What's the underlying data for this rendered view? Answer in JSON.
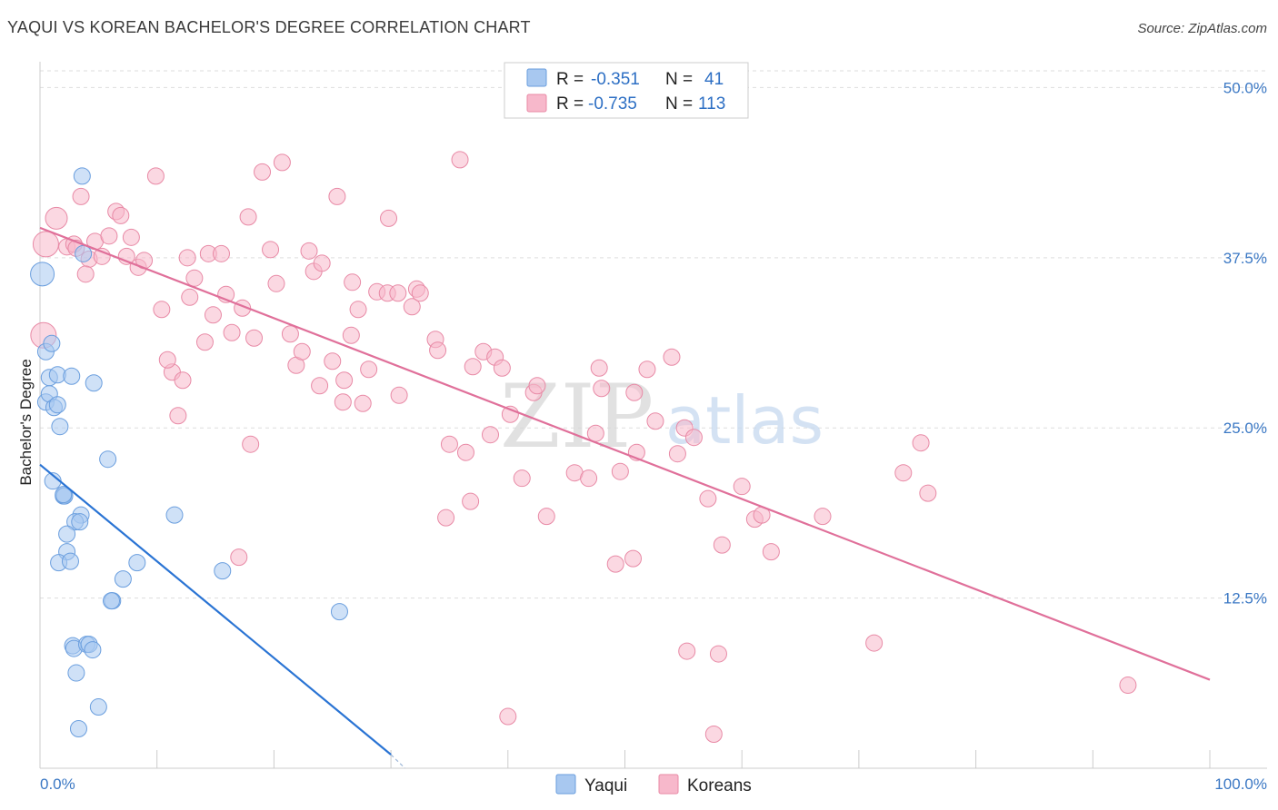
{
  "title": "YAQUI VS KOREAN BACHELOR'S DEGREE CORRELATION CHART",
  "source": "Source: ZipAtlas.com",
  "watermark": {
    "zip": "ZIP",
    "atlas": "atlas"
  },
  "colors": {
    "yaqui_fill": "#a8c8f0",
    "yaqui_stroke": "#6a9ede",
    "yaqui_line": "#2a74d4",
    "koreans_fill": "#f7b8cb",
    "koreans_stroke": "#e88aa6",
    "koreans_line": "#e0709a",
    "tick_text": "#3b78c4",
    "grid": "#dddddd"
  },
  "chart_data": {
    "type": "scatter",
    "title": "YAQUI VS KOREAN BACHELOR'S DEGREE CORRELATION CHART",
    "xlabel": "",
    "ylabel": "Bachelor's Degree",
    "xlim": [
      0,
      100
    ],
    "ylim": [
      0,
      50
    ],
    "x_tick_labels": [
      "0.0%",
      "100.0%"
    ],
    "y_ticks": [
      12.5,
      25.0,
      37.5,
      50.0
    ],
    "y_tick_labels": [
      "12.5%",
      "25.0%",
      "37.5%",
      "50.0%"
    ],
    "legend": [
      {
        "name": "Yaqui",
        "r_label": "R =",
        "r_value": "-0.351",
        "n_label": "N =",
        "n_value": "41"
      },
      {
        "name": "Koreans",
        "r_label": "R =",
        "r_value": "-0.735",
        "n_label": "N =",
        "n_value": "113"
      }
    ],
    "series": [
      {
        "name": "Yaqui",
        "trend": {
          "x": [
            0,
            30
          ],
          "y": [
            22.3,
            1.0
          ],
          "dashed_to": [
            31.2,
            0
          ]
        },
        "points": [
          [
            0.2,
            36.3,
            13
          ],
          [
            0.5,
            30.6,
            9
          ],
          [
            0.5,
            26.9,
            9
          ],
          [
            0.8,
            28.7,
            9
          ],
          [
            0.8,
            27.5,
            9
          ],
          [
            1.0,
            31.2,
            9
          ],
          [
            1.2,
            26.5,
            9
          ],
          [
            1.5,
            28.9,
            9
          ],
          [
            1.5,
            26.7,
            9
          ],
          [
            1.7,
            25.1,
            9
          ],
          [
            2.7,
            28.8,
            9
          ],
          [
            3.7,
            37.8,
            9
          ],
          [
            3.6,
            43.5,
            9
          ],
          [
            4.6,
            28.3,
            9
          ],
          [
            5.8,
            22.7,
            9
          ],
          [
            1.1,
            21.1,
            9
          ],
          [
            2.0,
            20.0,
            9
          ],
          [
            2.1,
            20.0,
            9
          ],
          [
            3.5,
            18.6,
            9
          ],
          [
            3.0,
            18.1,
            9
          ],
          [
            3.4,
            18.1,
            9
          ],
          [
            2.3,
            17.2,
            9
          ],
          [
            2.3,
            15.9,
            9
          ],
          [
            1.6,
            15.1,
            9
          ],
          [
            2.6,
            15.2,
            9
          ],
          [
            8.3,
            15.1,
            9
          ],
          [
            11.5,
            18.6,
            9
          ],
          [
            7.1,
            13.9,
            9
          ],
          [
            6.2,
            12.3,
            9
          ],
          [
            6.1,
            12.3,
            9
          ],
          [
            15.6,
            14.5,
            9
          ],
          [
            25.6,
            11.5,
            9
          ],
          [
            2.8,
            9.0,
            9
          ],
          [
            2.9,
            8.8,
            9
          ],
          [
            4.0,
            9.1,
            9
          ],
          [
            4.2,
            9.1,
            9
          ],
          [
            4.5,
            8.7,
            9
          ],
          [
            3.1,
            7.0,
            9
          ],
          [
            5.0,
            4.5,
            9
          ],
          [
            3.3,
            2.9,
            9
          ],
          [
            2.0,
            20.1,
            9
          ]
        ]
      },
      {
        "name": "Koreans",
        "trend": {
          "x": [
            0,
            100
          ],
          "y": [
            39.7,
            6.5
          ]
        },
        "points": [
          [
            1.4,
            40.4,
            12
          ],
          [
            0.5,
            38.5,
            14
          ],
          [
            0.3,
            31.8,
            14
          ],
          [
            2.3,
            38.3,
            9
          ],
          [
            2.9,
            38.5,
            9
          ],
          [
            3.1,
            38.2,
            9
          ],
          [
            3.5,
            42.0,
            9
          ],
          [
            4.2,
            37.4,
            9
          ],
          [
            3.9,
            36.3,
            9
          ],
          [
            4.7,
            38.7,
            9
          ],
          [
            5.3,
            37.6,
            9
          ],
          [
            5.9,
            39.1,
            9
          ],
          [
            6.5,
            40.9,
            9
          ],
          [
            6.9,
            40.6,
            9
          ],
          [
            7.8,
            39.0,
            9
          ],
          [
            7.4,
            37.6,
            9
          ],
          [
            8.4,
            36.8,
            9
          ],
          [
            8.9,
            37.3,
            9
          ],
          [
            9.9,
            43.5,
            9
          ],
          [
            10.4,
            33.7,
            9
          ],
          [
            11.3,
            29.1,
            9
          ],
          [
            10.9,
            30.0,
            9
          ],
          [
            11.8,
            25.9,
            9
          ],
          [
            12.2,
            28.5,
            9
          ],
          [
            12.6,
            37.5,
            9
          ],
          [
            12.8,
            34.6,
            9
          ],
          [
            13.2,
            36.0,
            9
          ],
          [
            14.1,
            31.3,
            9
          ],
          [
            14.4,
            37.8,
            9
          ],
          [
            14.8,
            33.3,
            9
          ],
          [
            15.5,
            37.8,
            9
          ],
          [
            15.9,
            34.8,
            9
          ],
          [
            16.4,
            32.0,
            9
          ],
          [
            17.3,
            33.8,
            9
          ],
          [
            18.0,
            23.8,
            9
          ],
          [
            17.0,
            15.5,
            9
          ],
          [
            17.8,
            40.5,
            9
          ],
          [
            18.3,
            31.6,
            9
          ],
          [
            19.0,
            43.8,
            9
          ],
          [
            19.7,
            38.1,
            9
          ],
          [
            20.2,
            35.6,
            9
          ],
          [
            20.7,
            44.5,
            9
          ],
          [
            21.4,
            31.9,
            9
          ],
          [
            21.9,
            29.6,
            9
          ],
          [
            22.4,
            30.6,
            9
          ],
          [
            23.0,
            38.0,
            9
          ],
          [
            23.4,
            36.5,
            9
          ],
          [
            24.1,
            37.1,
            9
          ],
          [
            23.9,
            28.1,
            9
          ],
          [
            25.0,
            29.9,
            9
          ],
          [
            25.4,
            42.0,
            9
          ],
          [
            26.0,
            28.5,
            9
          ],
          [
            26.6,
            31.8,
            9
          ],
          [
            26.7,
            35.7,
            9
          ],
          [
            27.2,
            33.7,
            9
          ],
          [
            27.6,
            26.8,
            9
          ],
          [
            28.1,
            29.3,
            9
          ],
          [
            28.8,
            35.0,
            9
          ],
          [
            29.7,
            34.9,
            9
          ],
          [
            30.6,
            34.9,
            9
          ],
          [
            29.8,
            40.4,
            9
          ],
          [
            30.7,
            27.4,
            9
          ],
          [
            31.8,
            33.9,
            9
          ],
          [
            32.2,
            35.2,
            9
          ],
          [
            32.5,
            34.9,
            9
          ],
          [
            33.8,
            31.5,
            9
          ],
          [
            34.0,
            30.7,
            9
          ],
          [
            35.0,
            23.8,
            9
          ],
          [
            34.7,
            18.4,
            9
          ],
          [
            35.9,
            44.7,
            9
          ],
          [
            36.4,
            23.2,
            9
          ],
          [
            36.8,
            19.6,
            9
          ],
          [
            37.0,
            29.5,
            9
          ],
          [
            37.9,
            30.6,
            9
          ],
          [
            38.5,
            24.5,
            9
          ],
          [
            38.9,
            30.2,
            9
          ],
          [
            39.5,
            29.4,
            9
          ],
          [
            40.2,
            26.0,
            9
          ],
          [
            41.2,
            21.3,
            9
          ],
          [
            42.2,
            27.6,
            9
          ],
          [
            42.5,
            28.1,
            9
          ],
          [
            43.3,
            18.5,
            9
          ],
          [
            45.7,
            21.7,
            9
          ],
          [
            46.9,
            21.3,
            9
          ],
          [
            47.5,
            24.6,
            9
          ],
          [
            47.8,
            29.4,
            9
          ],
          [
            48.0,
            27.9,
            9
          ],
          [
            49.2,
            15.0,
            9
          ],
          [
            50.7,
            15.4,
            9
          ],
          [
            49.6,
            21.8,
            9
          ],
          [
            51.0,
            23.2,
            9
          ],
          [
            50.8,
            27.6,
            9
          ],
          [
            51.9,
            29.3,
            9
          ],
          [
            52.6,
            25.5,
            9
          ],
          [
            54.0,
            30.2,
            9
          ],
          [
            54.5,
            23.1,
            9
          ],
          [
            55.1,
            25.0,
            9
          ],
          [
            55.9,
            24.3,
            9
          ],
          [
            57.1,
            19.8,
            9
          ],
          [
            58.3,
            16.4,
            9
          ],
          [
            60.0,
            20.7,
            9
          ],
          [
            61.1,
            18.3,
            9
          ],
          [
            61.7,
            18.6,
            9
          ],
          [
            62.5,
            15.9,
            9
          ],
          [
            66.9,
            18.5,
            9
          ],
          [
            71.3,
            9.2,
            9
          ],
          [
            73.8,
            21.7,
            9
          ],
          [
            75.3,
            23.9,
            9
          ],
          [
            75.9,
            20.2,
            9
          ],
          [
            93.0,
            6.1,
            9
          ],
          [
            55.3,
            8.6,
            9
          ],
          [
            58.0,
            8.4,
            9
          ],
          [
            40.0,
            3.8,
            9
          ],
          [
            57.6,
            2.5,
            9
          ],
          [
            25.9,
            26.9,
            9
          ]
        ]
      }
    ]
  }
}
